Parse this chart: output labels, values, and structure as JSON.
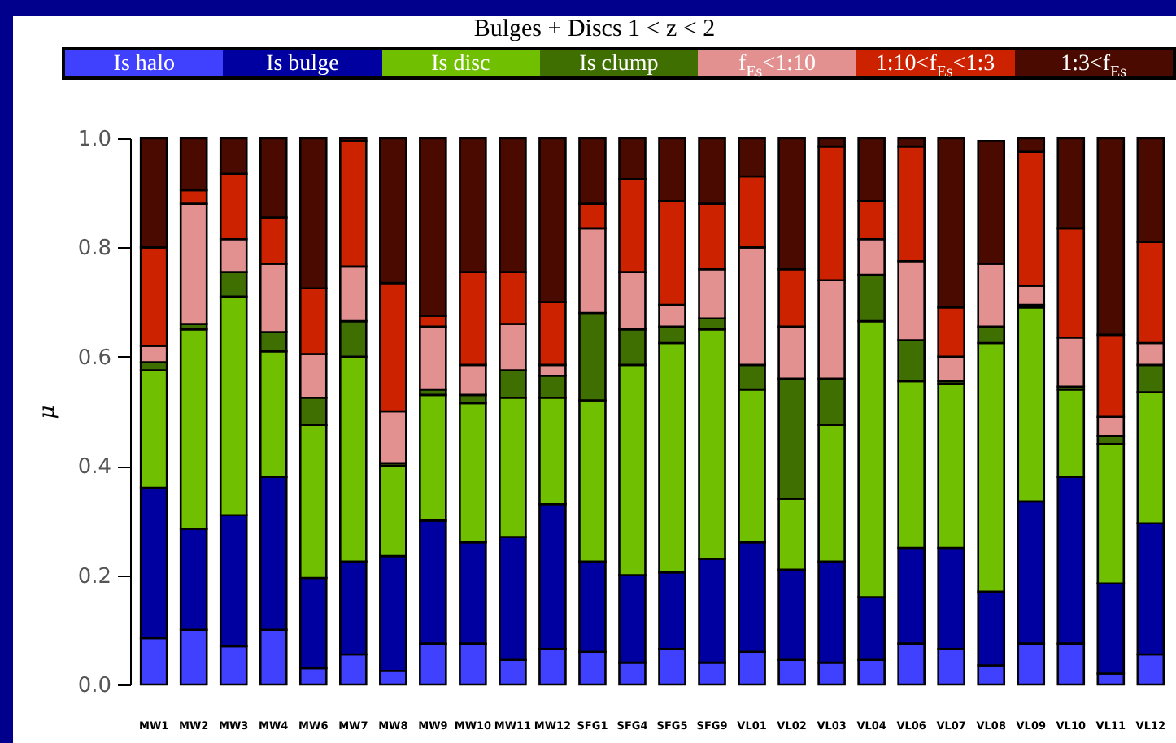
{
  "chart_data": {
    "type": "bar",
    "stacked": true,
    "title": "Bulges + Discs 1 < z < 2",
    "ylabel": "μ",
    "legend": "top",
    "categories": [
      "MW1",
      "MW2",
      "MW3",
      "MW4",
      "MW6",
      "MW7",
      "MW8",
      "MW9",
      "MW10",
      "MW11",
      "MW12",
      "SFG1",
      "SFG4",
      "SFG5",
      "SFG9",
      "VL01",
      "VL02",
      "VL03",
      "VL04",
      "VL06",
      "VL07",
      "VL08",
      "VL09",
      "VL10",
      "VL11",
      "VL12"
    ],
    "ylim": [
      0,
      1
    ],
    "yticks": [
      {
        "value": 0,
        "label": "0.0"
      },
      0.2,
      0.4,
      0.6,
      0.8,
      {
        "value": 1,
        "label": "1.0"
      }
    ],
    "series": [
      {
        "name": "Is halo",
        "color": "#4040ff",
        "values": [
          0.085,
          0.1,
          0.07,
          0.1,
          0.03,
          0.055,
          0.025,
          0.075,
          0.075,
          0.045,
          0.065,
          0.06,
          0.04,
          0.065,
          0.04,
          0.06,
          0.045,
          0.04,
          0.045,
          0.075,
          0.065,
          0.035,
          0.075,
          0.075,
          0.02,
          0.055
        ]
      },
      {
        "name": "Is bulge",
        "color": "#0000a0",
        "values": [
          0.275,
          0.185,
          0.24,
          0.28,
          0.165,
          0.17,
          0.21,
          0.225,
          0.185,
          0.225,
          0.265,
          0.165,
          0.16,
          0.14,
          0.19,
          0.2,
          0.165,
          0.185,
          0.115,
          0.175,
          0.185,
          0.135,
          0.26,
          0.305,
          0.165,
          0.24
        ]
      },
      {
        "name": "Is disc",
        "color": "#70bf00",
        "values": [
          0.215,
          0.365,
          0.4,
          0.23,
          0.28,
          0.375,
          0.165,
          0.23,
          0.255,
          0.255,
          0.195,
          0.295,
          0.385,
          0.42,
          0.42,
          0.28,
          0.13,
          0.25,
          0.505,
          0.305,
          0.3,
          0.455,
          0.355,
          0.16,
          0.255,
          0.24
        ]
      },
      {
        "name": "Is clump",
        "color": "#3f6f00",
        "values": [
          0.015,
          0.01,
          0.045,
          0.035,
          0.05,
          0.065,
          0.005,
          0.01,
          0.015,
          0.05,
          0.04,
          0.16,
          0.065,
          0.03,
          0.02,
          0.045,
          0.22,
          0.085,
          0.085,
          0.075,
          0.005,
          0.03,
          0.005,
          0.005,
          0.015,
          0.05
        ]
      },
      {
        "name": "f$_{Es}$<1:10",
        "color": "#e39090",
        "values": [
          0.03,
          0.22,
          0.06,
          0.125,
          0.08,
          0.1,
          0.095,
          0.115,
          0.055,
          0.085,
          0.02,
          0.155,
          0.105,
          0.04,
          0.09,
          0.215,
          0.095,
          0.18,
          0.065,
          0.145,
          0.045,
          0.115,
          0.035,
          0.09,
          0.035,
          0.04
        ]
      },
      {
        "name": "1:10<f$_{Es}$<1:3",
        "color": "#cc2200",
        "values": [
          0.18,
          0.025,
          0.12,
          0.085,
          0.12,
          0.23,
          0.235,
          0.02,
          0.17,
          0.095,
          0.115,
          0.045,
          0.17,
          0.19,
          0.12,
          0.13,
          0.105,
          0.245,
          0.07,
          0.21,
          0.09,
          null,
          0.245,
          0.2,
          0.15,
          0.185
        ]
      },
      {
        "name": "1:3<f$_{Es}$",
        "color": "#4a0a00",
        "values": [
          0.2,
          0.095,
          0.065,
          0.145,
          0.275,
          0.005,
          0.265,
          0.325,
          0.245,
          0.245,
          0.3,
          0.12,
          0.075,
          0.115,
          0.12,
          0.07,
          0.24,
          0.015,
          0.115,
          0.015,
          0.31,
          0.225,
          0.025,
          0.165,
          0.36,
          0.19
        ]
      }
    ]
  }
}
